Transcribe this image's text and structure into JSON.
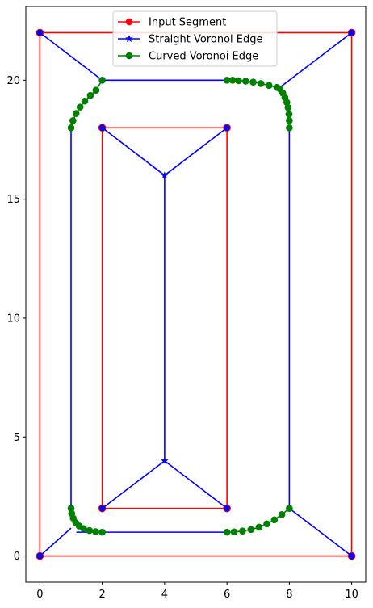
{
  "chart_data": {
    "type": "line",
    "title": "",
    "xlabel": "",
    "ylabel": "",
    "xlim": [
      -0.45,
      10.45
    ],
    "ylim": [
      -1.1,
      23.1
    ],
    "xticks": [
      0,
      2,
      4,
      6,
      8,
      10
    ],
    "yticks": [
      0,
      5,
      10,
      15,
      20
    ],
    "grid": false,
    "legend_position": "top-center",
    "colors": {
      "input": "#ff0000",
      "straight": "#0000ff",
      "curved": "#008000",
      "vertex": "#0000ff"
    },
    "legend": [
      {
        "label": "Input Segment",
        "color": "#ff0000",
        "marker": "circle"
      },
      {
        "label": "Straight Voronoi Edge",
        "color": "#0000ff",
        "marker": "star"
      },
      {
        "label": "Curved Voronoi Edge",
        "color": "#008000",
        "marker": "circle"
      }
    ],
    "input_segments": [
      [
        [
          0,
          0
        ],
        [
          10,
          0
        ]
      ],
      [
        [
          10,
          0
        ],
        [
          10,
          22
        ]
      ],
      [
        [
          10,
          22
        ],
        [
          0,
          22
        ]
      ],
      [
        [
          0,
          22
        ],
        [
          0,
          0
        ]
      ],
      [
        [
          2,
          2
        ],
        [
          6,
          2
        ]
      ],
      [
        [
          6,
          2
        ],
        [
          6,
          18
        ]
      ],
      [
        [
          6,
          18
        ],
        [
          2,
          18
        ]
      ],
      [
        [
          2,
          18
        ],
        [
          2,
          2
        ]
      ]
    ],
    "straight_edges": [
      [
        [
          0,
          0
        ],
        [
          1,
          1.17
        ]
      ],
      [
        [
          1.17,
          1
        ],
        [
          2,
          1
        ]
      ],
      [
        [
          2,
          1
        ],
        [
          6,
          1
        ]
      ],
      [
        [
          10,
          0
        ],
        [
          8,
          2
        ]
      ],
      [
        [
          8,
          2
        ],
        [
          8,
          18
        ]
      ],
      [
        [
          10,
          22
        ],
        [
          7.7,
          19.7
        ]
      ],
      [
        [
          6,
          20
        ],
        [
          2,
          20
        ]
      ],
      [
        [
          2,
          20
        ],
        [
          0,
          22
        ]
      ],
      [
        [
          1,
          18
        ],
        [
          1,
          2
        ]
      ],
      [
        [
          2,
          2
        ],
        [
          4,
          4
        ]
      ],
      [
        [
          6,
          2
        ],
        [
          4,
          4
        ]
      ],
      [
        [
          4,
          4
        ],
        [
          4,
          16
        ]
      ],
      [
        [
          4,
          16
        ],
        [
          2,
          18
        ]
      ],
      [
        [
          4,
          16
        ],
        [
          6,
          18
        ]
      ]
    ],
    "star_points": [
      [
        4,
        4
      ],
      [
        4,
        16
      ]
    ],
    "curved_edges": [
      [
        [
          1,
          2
        ],
        [
          1.02,
          1.79
        ],
        [
          1.07,
          1.59
        ],
        [
          1.15,
          1.4
        ],
        [
          1.26,
          1.26
        ],
        [
          1.4,
          1.15
        ],
        [
          1.59,
          1.07
        ],
        [
          1.79,
          1.02
        ],
        [
          2,
          1
        ]
      ],
      [
        [
          6,
          1
        ],
        [
          6.23,
          1.01
        ],
        [
          6.5,
          1.05
        ],
        [
          6.77,
          1.11
        ],
        [
          7.03,
          1.21
        ],
        [
          7.28,
          1.35
        ],
        [
          7.52,
          1.52
        ],
        [
          7.76,
          1.74
        ],
        [
          8,
          2
        ]
      ],
      [
        [
          1,
          18
        ],
        [
          1.06,
          18.3
        ],
        [
          1.16,
          18.6
        ],
        [
          1.29,
          18.87
        ],
        [
          1.44,
          19.12
        ],
        [
          1.62,
          19.36
        ],
        [
          1.8,
          19.58
        ],
        [
          2,
          20
        ]
      ],
      [
        [
          6,
          20
        ],
        [
          6.18,
          20
        ],
        [
          6.37,
          19.98
        ],
        [
          6.6,
          19.96
        ],
        [
          6.84,
          19.92
        ],
        [
          7.09,
          19.86
        ],
        [
          7.35,
          19.78
        ],
        [
          7.6,
          19.7
        ],
        [
          7.7,
          19.63
        ],
        [
          7.79,
          19.46
        ],
        [
          7.86,
          19.27
        ],
        [
          7.92,
          19.07
        ],
        [
          7.96,
          18.85
        ],
        [
          7.99,
          18.57
        ],
        [
          8,
          18.3
        ],
        [
          8,
          18
        ]
      ]
    ]
  }
}
